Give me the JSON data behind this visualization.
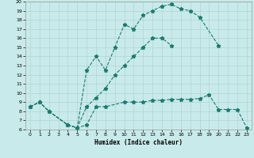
{
  "xlabel": "Humidex (Indice chaleur)",
  "background_color": "#c8eaea",
  "grid_color": "#b0d4d4",
  "line_color": "#1a7a6e",
  "xlim": [
    -0.5,
    23.5
  ],
  "ylim": [
    6,
    20
  ],
  "xticks": [
    0,
    1,
    2,
    3,
    4,
    5,
    6,
    7,
    8,
    9,
    10,
    11,
    12,
    13,
    14,
    15,
    16,
    17,
    18,
    19,
    20,
    21,
    22,
    23
  ],
  "yticks": [
    6,
    7,
    8,
    9,
    10,
    11,
    12,
    13,
    14,
    15,
    16,
    17,
    18,
    19,
    20
  ],
  "s1x": [
    0,
    1,
    2,
    4,
    5,
    6,
    7,
    8,
    10,
    11,
    12,
    13,
    14,
    15,
    16,
    17,
    18,
    19,
    20,
    21,
    22,
    23
  ],
  "s1y": [
    8.5,
    9.0,
    8.0,
    6.5,
    6.2,
    6.5,
    8.5,
    8.5,
    9.0,
    9.0,
    9.0,
    9.2,
    9.2,
    9.3,
    9.3,
    9.3,
    9.4,
    9.8,
    8.2,
    8.2,
    8.2,
    6.2
  ],
  "s2x": [
    0,
    1,
    2,
    4,
    5,
    6,
    7,
    8,
    9,
    10,
    11,
    12,
    13,
    14,
    15,
    16,
    17,
    18,
    20
  ],
  "s2y": [
    8.5,
    9.0,
    8.0,
    6.5,
    6.2,
    12.5,
    14.0,
    12.5,
    15.0,
    17.5,
    17.0,
    18.5,
    19.0,
    19.5,
    19.7,
    19.2,
    19.0,
    18.3,
    15.2
  ],
  "s3x": [
    0,
    1,
    2,
    4,
    5,
    6,
    7,
    8,
    9,
    10,
    11,
    12,
    13,
    14,
    15
  ],
  "s3y": [
    8.5,
    9.0,
    8.0,
    6.5,
    6.2,
    8.5,
    9.5,
    10.5,
    12.0,
    13.0,
    14.0,
    15.0,
    16.0,
    16.0,
    15.2
  ]
}
